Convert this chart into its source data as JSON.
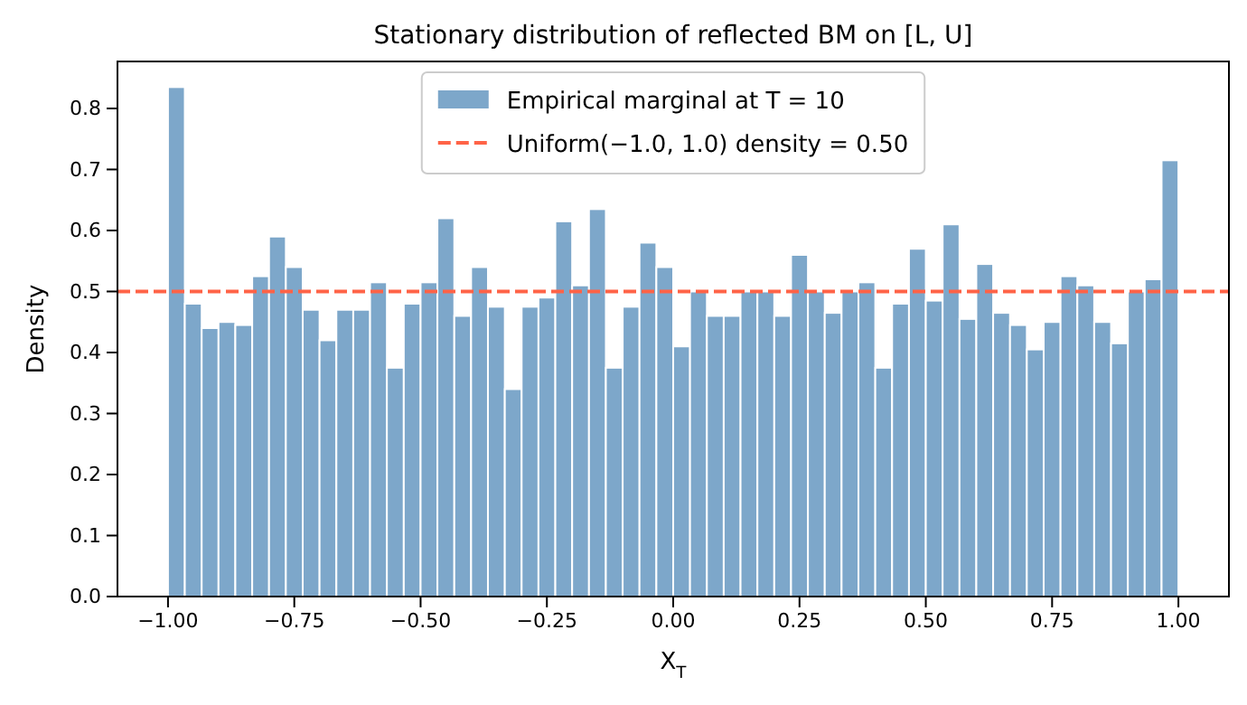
{
  "chart_data": {
    "type": "histogram",
    "title": "Stationary distribution of reflected BM on [L, U]",
    "xlabel": "X$_{T}$",
    "ylabel": "Density",
    "bins": [
      -1,
      -0.9667,
      -0.9333,
      -0.9,
      -0.8667,
      -0.8333,
      -0.8,
      -0.7667,
      -0.7333,
      -0.7,
      -0.6667,
      -0.6333,
      -0.6,
      -0.5667,
      -0.5333,
      -0.5,
      -0.4667,
      -0.4333,
      -0.4,
      -0.3667,
      -0.3333,
      -0.3,
      -0.2667,
      -0.2333,
      -0.2,
      -0.1667,
      -0.1333,
      -0.1,
      -0.0667,
      -0.0333,
      0,
      0.0333,
      0.0667,
      0.1,
      0.1333,
      0.1667,
      0.2,
      0.2333,
      0.2667,
      0.3,
      0.3333,
      0.3667,
      0.4,
      0.4333,
      0.4667,
      0.5,
      0.5333,
      0.5667,
      0.6,
      0.6333,
      0.6667,
      0.7,
      0.7333,
      0.7667,
      0.8,
      0.8333,
      0.8667,
      0.9,
      0.9333,
      0.9667,
      1
    ],
    "series": [
      {
        "name": "Empirical marginal at T = 10",
        "color": "#7da7ca",
        "values": [
          0.835,
          0.48,
          0.44,
          0.45,
          0.445,
          0.525,
          0.59,
          0.54,
          0.47,
          0.42,
          0.47,
          0.47,
          0.515,
          0.375,
          0.48,
          0.515,
          0.62,
          0.46,
          0.54,
          0.475,
          0.34,
          0.475,
          0.49,
          0.615,
          0.51,
          0.635,
          0.375,
          0.475,
          0.58,
          0.54,
          0.41,
          0.5,
          0.46,
          0.46,
          0.5,
          0.5,
          0.46,
          0.56,
          0.5,
          0.465,
          0.5,
          0.515,
          0.375,
          0.48,
          0.57,
          0.485,
          0.61,
          0.455,
          0.545,
          0.465,
          0.445,
          0.405,
          0.45,
          0.525,
          0.51,
          0.45,
          0.415,
          0.5,
          0.52,
          0.715
        ]
      }
    ],
    "ref_lines": [
      {
        "axis": "y",
        "value": 0.5,
        "label": "Uniform(−1.0, 1.0) density = 0.50",
        "color": "#ff6347",
        "line_style": "dashed"
      }
    ],
    "xlim": [
      -1.1,
      1.1
    ],
    "xticks": [
      {
        "value": -1,
        "label": "−1.00"
      },
      {
        "value": -0.75,
        "label": "−0.75"
      },
      {
        "value": -0.5,
        "label": "−0.50"
      },
      {
        "value": -0.25,
        "label": "−0.25"
      },
      {
        "value": 0,
        "label": "0.00"
      },
      {
        "value": 0.25,
        "label": "0.25"
      },
      {
        "value": 0.5,
        "label": "0.50"
      },
      {
        "value": 0.75,
        "label": "0.75"
      },
      {
        "value": 1,
        "label": "1.00"
      }
    ],
    "ylim": [
      0,
      0.877
    ],
    "yticks": [
      {
        "value": 0,
        "label": "0.0"
      },
      {
        "value": 0.1,
        "label": "0.1"
      },
      {
        "value": 0.2,
        "label": "0.2"
      },
      {
        "value": 0.3,
        "label": "0.3"
      },
      {
        "value": 0.4,
        "label": "0.4"
      },
      {
        "value": 0.5,
        "label": "0.5"
      },
      {
        "value": 0.6,
        "label": "0.6"
      },
      {
        "value": 0.7,
        "label": "0.7"
      },
      {
        "value": 0.8,
        "label": "0.8"
      }
    ],
    "grid": false,
    "legend": "top"
  }
}
